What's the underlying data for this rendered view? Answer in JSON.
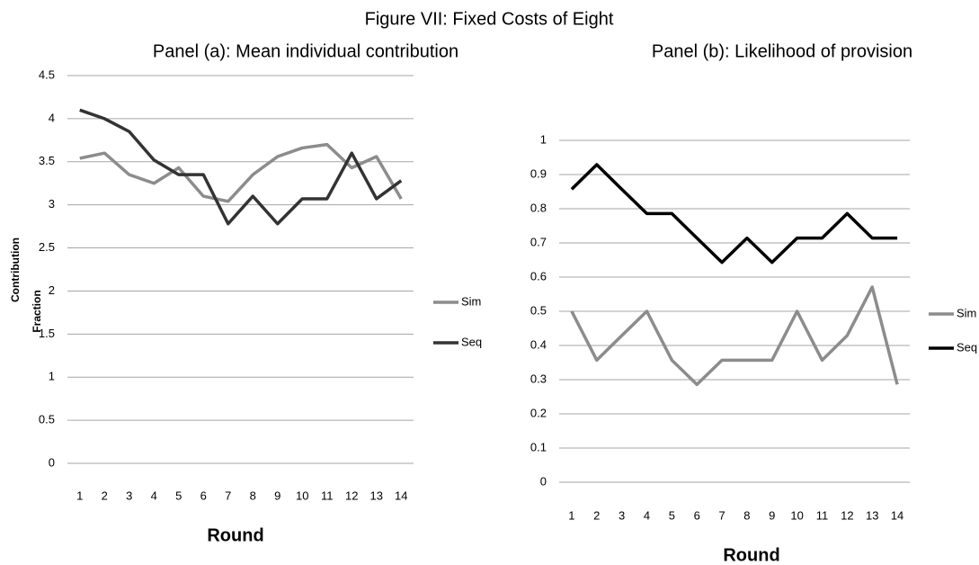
{
  "title": "Figure VII: Fixed Costs of Eight",
  "chart_data": [
    {
      "type": "line",
      "title": "Panel (a): Mean individual contribution",
      "x_label": "Round",
      "y_label": "Contribution",
      "categories": [
        "1",
        "2",
        "3",
        "4",
        "5",
        "6",
        "7",
        "8",
        "9",
        "10",
        "11",
        "12",
        "13",
        "14"
      ],
      "series": [
        {
          "name": "Sim",
          "color": "#8c8c8c",
          "values": [
            3.54,
            3.6,
            3.35,
            3.25,
            3.43,
            3.1,
            3.04,
            3.35,
            3.56,
            3.66,
            3.7,
            3.43,
            3.56,
            3.07
          ]
        },
        {
          "name": "Seq",
          "color": "#333333",
          "values": [
            4.1,
            4.0,
            3.85,
            3.52,
            3.35,
            3.35,
            2.78,
            3.1,
            2.78,
            3.07,
            3.07,
            3.6,
            3.07,
            3.28
          ]
        }
      ],
      "ylim": [
        0,
        4.5
      ],
      "yticks": [
        0,
        0.5,
        1,
        1.5,
        2,
        2.5,
        3,
        3.5,
        4,
        4.5
      ],
      "grid": true,
      "legend": "right"
    },
    {
      "type": "line",
      "title": "Panel (b): Likelihood of provision",
      "x_label": "Round",
      "y_label": "Fraction",
      "categories": [
        "1",
        "2",
        "3",
        "4",
        "5",
        "6",
        "7",
        "8",
        "9",
        "10",
        "11",
        "12",
        "13",
        "14"
      ],
      "series": [
        {
          "name": "Sim",
          "color": "#8c8c8c",
          "values": [
            0.5,
            0.357,
            0.429,
            0.5,
            0.357,
            0.286,
            0.357,
            0.357,
            0.357,
            0.5,
            0.357,
            0.429,
            0.571,
            0.286
          ]
        },
        {
          "name": "Seq",
          "color": "#000000",
          "values": [
            0.857,
            0.929,
            0.857,
            0.786,
            0.786,
            0.714,
            0.643,
            0.714,
            0.643,
            0.714,
            0.714,
            0.786,
            0.714,
            0.714
          ]
        }
      ],
      "ylim": [
        0,
        1
      ],
      "yticks": [
        0,
        0.1,
        0.2,
        0.3,
        0.4,
        0.5,
        0.6,
        0.7,
        0.8,
        0.9,
        1
      ],
      "grid": true,
      "legend": "right"
    }
  ]
}
